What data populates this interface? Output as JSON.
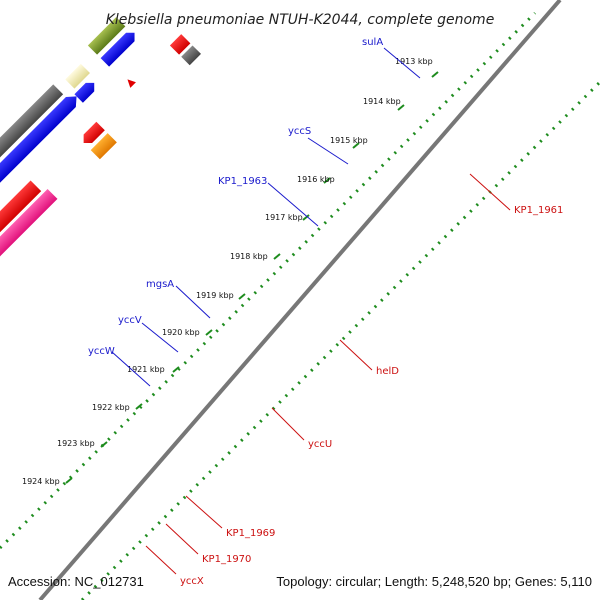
{
  "title": "Klebsiella pneumoniae NTUH-K2044, complete genome",
  "accession": "Accession: NC_012731",
  "topology": "Topology: circular; Length: 5,248,520 bp; Genes: 5,110",
  "ticks": [
    "1913 kbp",
    "1914 kbp",
    "1915 kbp",
    "1916 kbp",
    "1917 kbp",
    "1918 kbp",
    "1919 kbp",
    "1920 kbp",
    "1921 kbp",
    "1922 kbp",
    "1923 kbp",
    "1924 kbp"
  ],
  "genes_forward": [
    "sulA",
    "yccS",
    "KP1_1963",
    "mgsA",
    "yccV",
    "yccW"
  ],
  "genes_reverse": [
    "KP1_1961",
    "helD",
    "yccU",
    "KP1_1969",
    "KP1_1970",
    "yccX"
  ],
  "colors": {
    "backbone": "#7a7a7a",
    "dots": "#1e8c1e",
    "label_forward": "#1a1acc",
    "label_reverse": "#cc1111"
  }
}
